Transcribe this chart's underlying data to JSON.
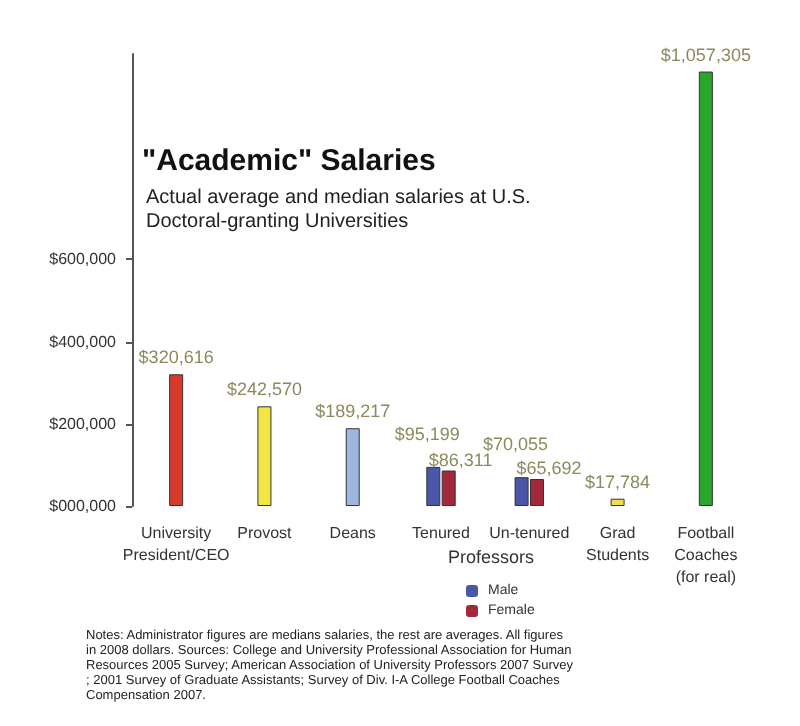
{
  "chart_data": {
    "type": "bar",
    "title": "\"Academic\" Salaries",
    "subtitle": "Actual average and median salaries at U.S.\nDoctoral-granting Universities",
    "categories": [
      "University\nPresident/CEO",
      "Provost",
      "Deans",
      "Tenured",
      "Un-tenured",
      "Grad\nStudents",
      "Football\nCoaches\n(for real)"
    ],
    "series": [
      {
        "colors": [
          "#d8392b",
          "#f4e444",
          "#9db6de",
          null,
          null,
          "#f0e050",
          "#2aa62a"
        ],
        "values": [
          320616,
          242570,
          189217,
          null,
          null,
          17784,
          1057305
        ],
        "value_labels": [
          "$320,616",
          "$242,570",
          "$189,217",
          null,
          null,
          "$17,784",
          "$1,057,305"
        ]
      },
      {
        "name": "Male",
        "color": "#4c56a8",
        "values": [
          null,
          null,
          null,
          95199,
          70055,
          null,
          null
        ],
        "value_labels": [
          null,
          null,
          null,
          "$95,199",
          "$70,055",
          null,
          null
        ]
      },
      {
        "name": "Female",
        "color": "#a3283c",
        "values": [
          null,
          null,
          null,
          86311,
          65692,
          null,
          null
        ],
        "value_labels": [
          null,
          null,
          null,
          "$86,311",
          "$65,692",
          null,
          null
        ]
      }
    ],
    "ylim": [
      0,
      1100000
    ],
    "yticks": [
      {
        "value": 0,
        "label": "$000,000"
      },
      {
        "value": 200000,
        "label": "$200,000"
      },
      {
        "value": 400000,
        "label": "$400,000"
      },
      {
        "value": 600000,
        "label": "$600,000"
      }
    ],
    "grid": false,
    "legend": "bottom",
    "annotations": [
      "Professors",
      "Notes: Administrator figures are medians salaries, the rest are averages. All figures in 2008 dollars. Sources: College and University Professional Association for Human Resources 2005 Survey; American Association of University Professors 2007 Survey; 2001 Survey of Graduate Assistants; Survey of Div. I-A College Football Coaches Compensation 2007."
    ]
  }
}
